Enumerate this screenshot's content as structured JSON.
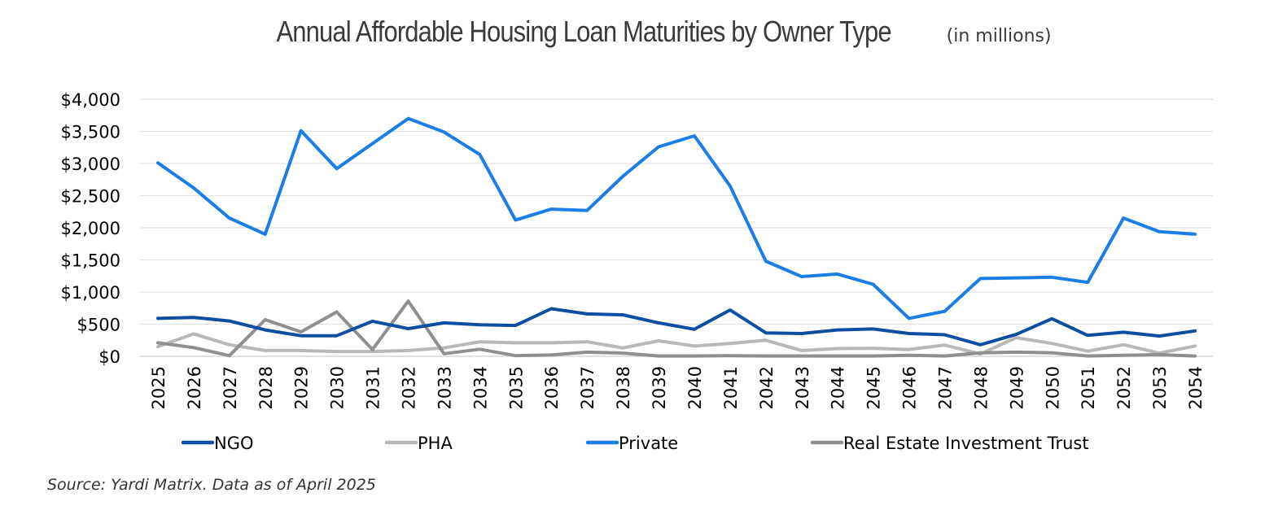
{
  "chart_data": {
    "type": "line",
    "title": "Annual Affordable Housing Loan Maturities by Owner Type",
    "subtitle": "(in millions)",
    "source": "Source: Yardi Matrix. Data as of April 2025",
    "ylim": [
      0,
      4000
    ],
    "y_ticks": [
      0,
      500,
      1000,
      1500,
      2000,
      2500,
      3000,
      3500,
      4000
    ],
    "y_tick_labels": [
      "$0",
      "$500",
      "$1,000",
      "$1,500",
      "$2,000",
      "$2,500",
      "$3,000",
      "$3,500",
      "$4,000"
    ],
    "grid": true,
    "legend_position": "bottom",
    "x": [
      "2025",
      "2026",
      "2027",
      "2028",
      "2029",
      "2030",
      "2031",
      "2032",
      "2033",
      "2034",
      "2035",
      "2036",
      "2037",
      "2038",
      "2039",
      "2040",
      "2041",
      "2042",
      "2043",
      "2044",
      "2045",
      "2046",
      "2047",
      "2048",
      "2049",
      "2050",
      "2051",
      "2052",
      "2053",
      "2054"
    ],
    "series": [
      {
        "name": "NGO",
        "color": "#0c4ea2",
        "values": [
          590,
          605,
          550,
          410,
          320,
          320,
          545,
          430,
          520,
          490,
          480,
          740,
          660,
          645,
          520,
          420,
          720,
          365,
          355,
          410,
          425,
          355,
          335,
          180,
          340,
          585,
          325,
          375,
          315,
          395
        ]
      },
      {
        "name": "PHA",
        "color": "#b8b8b8",
        "values": [
          150,
          350,
          180,
          90,
          90,
          75,
          75,
          90,
          130,
          225,
          210,
          210,
          225,
          130,
          240,
          160,
          200,
          250,
          90,
          120,
          125,
          105,
          175,
          35,
          290,
          200,
          80,
          180,
          50,
          160
        ]
      },
      {
        "name": "Private",
        "color": "#1a7ee6",
        "values": [
          3010,
          2620,
          2150,
          1900,
          3510,
          2920,
          3310,
          3700,
          3490,
          3140,
          2120,
          2290,
          2270,
          2800,
          3260,
          3430,
          2650,
          1480,
          1240,
          1280,
          1120,
          590,
          700,
          1210,
          1220,
          1230,
          1150,
          2150,
          1940,
          1900
        ]
      },
      {
        "name": "Real Estate Investment Trust",
        "color": "#8f8f8f",
        "values": [
          210,
          135,
          10,
          570,
          380,
          690,
          105,
          860,
          40,
          110,
          10,
          20,
          65,
          50,
          5,
          5,
          10,
          5,
          5,
          5,
          5,
          15,
          5,
          55,
          65,
          55,
          5,
          15,
          25,
          5
        ]
      }
    ]
  }
}
